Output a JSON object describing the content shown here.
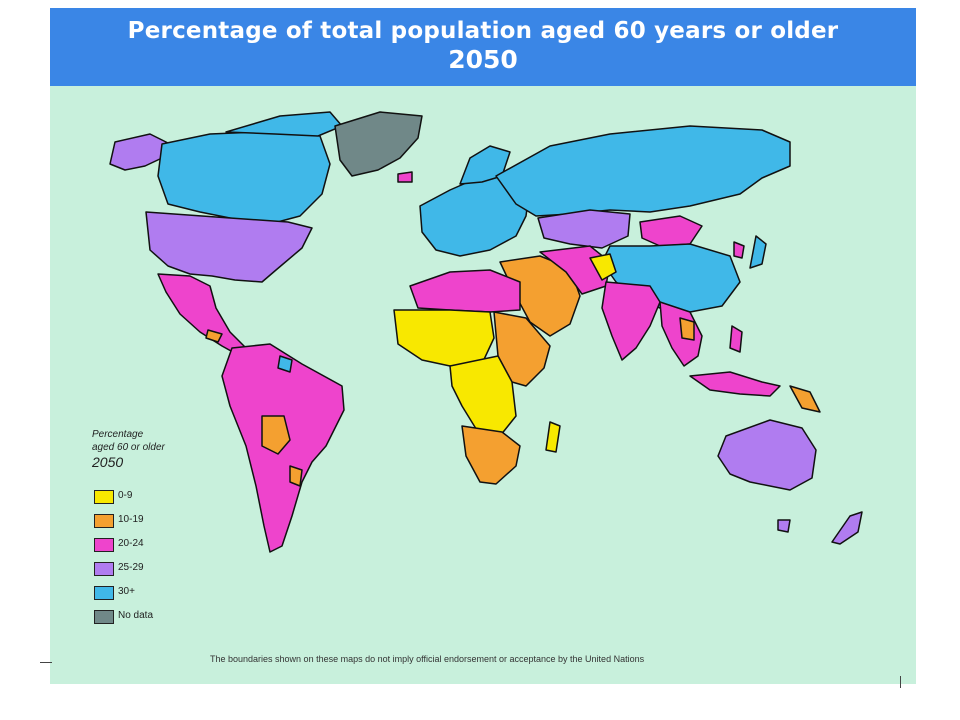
{
  "title": {
    "line1": "Percentage of total population aged 60 years or older",
    "line2": "2050"
  },
  "legend": {
    "heading_line1": "Percentage",
    "heading_line2": "aged 60 or older",
    "heading_year": "2050",
    "items": [
      {
        "label": "0-9",
        "color": "#f8e800"
      },
      {
        "label": "10-19",
        "color": "#f4a030"
      },
      {
        "label": "20-24",
        "color": "#ee44cc"
      },
      {
        "label": "25-29",
        "color": "#b07cf0"
      },
      {
        "label": "30+",
        "color": "#40b8e8"
      },
      {
        "label": "No data",
        "color": "#708888"
      }
    ]
  },
  "footnote": "The boundaries shown on these maps do not imply official endorsement or acceptance by the United Nations",
  "colors": {
    "header_bg": "#3a86e6",
    "ocean": "#c8f0dc"
  }
}
